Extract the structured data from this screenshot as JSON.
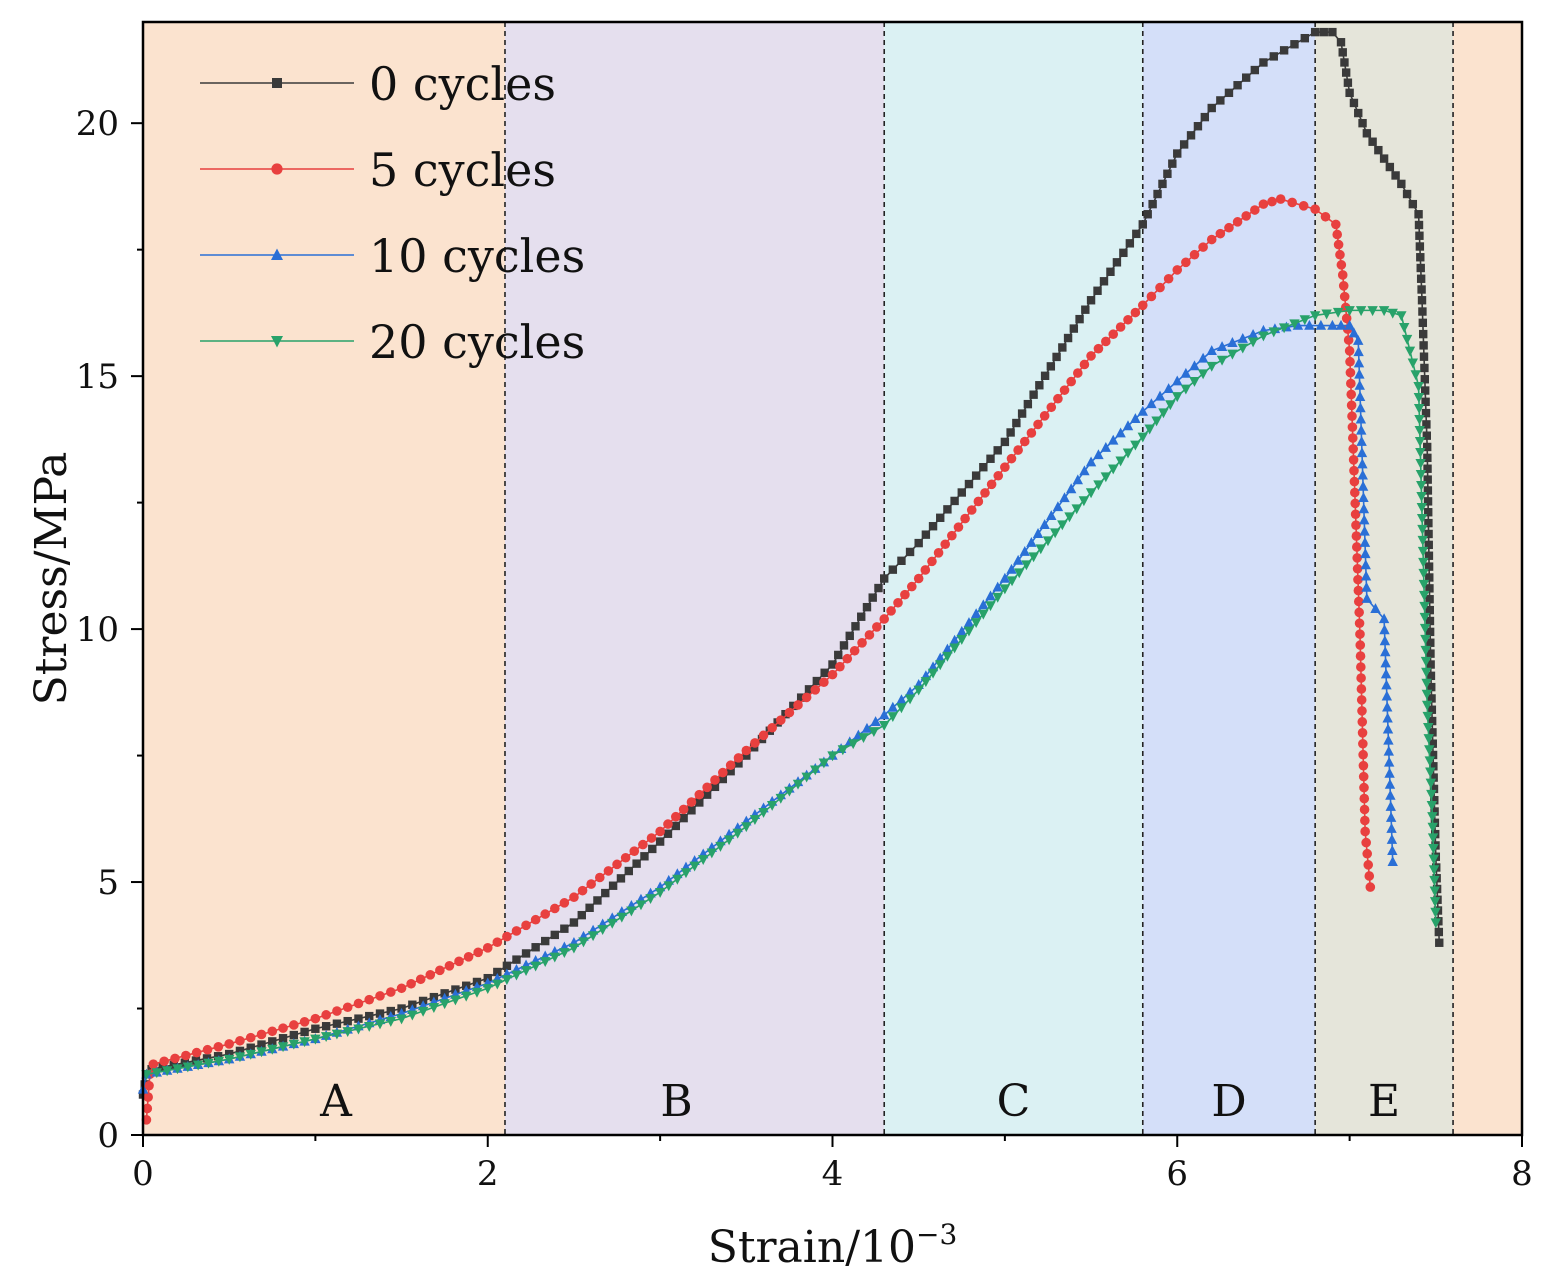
{
  "chart_data": {
    "type": "line",
    "title": "",
    "xlabel": "Strain/10",
    "xlabel_sup": "−3",
    "ylabel": "Stress/MPa",
    "xlim": [
      0,
      8
    ],
    "ylim": [
      0,
      22
    ],
    "xticks": [
      0,
      2,
      4,
      6,
      8
    ],
    "yticks": [
      0,
      5,
      10,
      15,
      20
    ],
    "grid": false,
    "legend_position": "top-left",
    "regions": [
      {
        "label": "A",
        "x0": 0,
        "x1": 2.1,
        "color": "#fbe3cf"
      },
      {
        "label": "B",
        "x0": 2.1,
        "x1": 4.3,
        "color": "#e5dfee"
      },
      {
        "label": "C",
        "x0": 4.3,
        "x1": 5.8,
        "color": "#dbf1f3"
      },
      {
        "label": "D",
        "x0": 5.8,
        "x1": 6.8,
        "color": "#d4dff9"
      },
      {
        "label": "E",
        "x0": 6.8,
        "x1": 7.6,
        "color": "#e5e5da"
      },
      {
        "label": "",
        "x0": 7.6,
        "x1": 8.0,
        "color": "#fbe3cf"
      }
    ],
    "series": [
      {
        "name": "0 cycles",
        "color": "#3a3a3a",
        "marker": "square",
        "x": [
          0.0,
          0.02,
          0.05,
          0.5,
          1.0,
          1.5,
          2.0,
          2.5,
          3.0,
          3.5,
          4.0,
          4.3,
          4.5,
          5.0,
          5.5,
          5.8,
          6.0,
          6.2,
          6.5,
          6.8,
          6.9,
          6.95,
          7.0,
          7.1,
          7.3,
          7.4,
          7.42,
          7.45,
          7.47,
          7.5,
          7.52
        ],
        "y": [
          0.8,
          1.2,
          1.3,
          1.6,
          2.1,
          2.5,
          3.1,
          4.2,
          5.8,
          7.5,
          9.3,
          11.0,
          11.7,
          13.7,
          16.5,
          18.0,
          19.4,
          20.3,
          21.2,
          21.8,
          21.8,
          21.6,
          20.6,
          19.8,
          18.8,
          18.2,
          16.5,
          13.6,
          9.3,
          5.5,
          3.8
        ]
      },
      {
        "name": "5 cycles",
        "color": "#e8403f",
        "marker": "circle",
        "x": [
          0.02,
          0.04,
          0.06,
          0.5,
          1.0,
          1.5,
          2.0,
          2.5,
          3.0,
          3.5,
          4.0,
          4.3,
          4.5,
          5.0,
          5.5,
          5.8,
          6.0,
          6.2,
          6.5,
          6.6,
          6.8,
          6.92,
          6.96,
          7.0,
          7.03,
          7.06,
          7.09,
          7.12
        ],
        "y": [
          0.3,
          1.2,
          1.4,
          1.8,
          2.3,
          2.9,
          3.7,
          4.7,
          6.0,
          7.6,
          9.1,
          10.2,
          11.0,
          13.2,
          15.4,
          16.4,
          17.1,
          17.7,
          18.4,
          18.5,
          18.3,
          18.0,
          17.0,
          15.5,
          12.7,
          9.9,
          6.0,
          4.9
        ]
      },
      {
        "name": "10 cycles",
        "color": "#2a6fd6",
        "marker": "triangle-up",
        "x": [
          0.0,
          0.02,
          0.5,
          1.0,
          1.5,
          2.0,
          2.5,
          3.0,
          3.5,
          4.0,
          4.3,
          4.5,
          5.0,
          5.5,
          5.8,
          6.0,
          6.2,
          6.5,
          6.7,
          6.9,
          7.0,
          7.05,
          7.1,
          7.2,
          7.25
        ],
        "y": [
          0.9,
          1.2,
          1.5,
          1.9,
          2.4,
          3.0,
          3.8,
          4.9,
          6.2,
          7.5,
          8.3,
          8.9,
          11.0,
          13.3,
          14.3,
          14.9,
          15.5,
          15.9,
          16.0,
          16.0,
          16.0,
          15.7,
          10.6,
          10.2,
          5.4
        ]
      },
      {
        "name": "20 cycles",
        "color": "#28a26a",
        "marker": "triangle-down",
        "x": [
          0.02,
          0.5,
          1.0,
          1.5,
          2.0,
          2.5,
          3.0,
          3.5,
          4.0,
          4.3,
          4.5,
          5.0,
          5.5,
          5.8,
          6.0,
          6.2,
          6.5,
          6.8,
          7.0,
          7.2,
          7.3,
          7.35,
          7.4,
          7.45,
          7.48,
          7.5
        ],
        "y": [
          1.2,
          1.5,
          1.9,
          2.3,
          2.9,
          3.7,
          4.8,
          6.1,
          7.5,
          8.1,
          8.8,
          10.8,
          12.7,
          13.8,
          14.6,
          15.2,
          15.8,
          16.2,
          16.3,
          16.3,
          16.2,
          15.5,
          14.8,
          8.5,
          6.3,
          4.2
        ]
      }
    ]
  }
}
